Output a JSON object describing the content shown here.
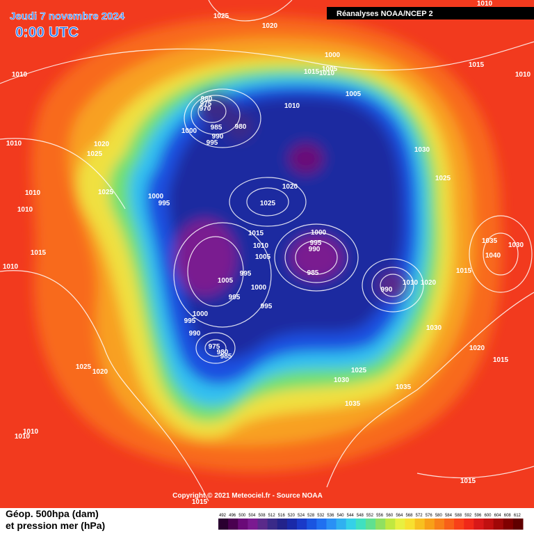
{
  "header": {
    "title": "Jeudi 7 novembre 2024",
    "time": "0:00 UTC",
    "source": "Réanalyses NOAA/NCEP 2"
  },
  "copyright": "Copyright © 2021 Meteociel.fr - Source NOAA",
  "legend": {
    "lines": [
      "Géop. 500hpa (dam)",
      "et pression mer (hPa)"
    ],
    "scale_labels": [
      "492",
      "496",
      "500",
      "504",
      "508",
      "512",
      "516",
      "520",
      "524",
      "528",
      "532",
      "536",
      "540",
      "544",
      "548",
      "552",
      "556",
      "560",
      "564",
      "568",
      "572",
      "576",
      "580",
      "584",
      "588",
      "592",
      "596",
      "600",
      "604",
      "608",
      "612"
    ],
    "scale_colors": [
      "#2a0030",
      "#4a0050",
      "#6a0a78",
      "#7a1a90",
      "#5a2a8a",
      "#3a2a88",
      "#23238a",
      "#1a2aa8",
      "#1a3ac8",
      "#1a55e0",
      "#2070f0",
      "#2a90f5",
      "#30b0f0",
      "#35d0e8",
      "#40e0c0",
      "#60e090",
      "#90e060",
      "#c0e840",
      "#e8f040",
      "#f8e030",
      "#f8c020",
      "#f8a018",
      "#f88018",
      "#f86018",
      "#f84018",
      "#f02818",
      "#d81818",
      "#c01010",
      "#a00808",
      "#800000",
      "#600000"
    ]
  },
  "isobar_labels": [
    "1025",
    "1020",
    "1010",
    "1015",
    "1010",
    "1010",
    "1000",
    "1005",
    "1015",
    "1010",
    "1005",
    "980",
    "975",
    "970",
    "1010",
    "985",
    "980",
    "990",
    "1000",
    "995",
    "1010",
    "1020",
    "1025",
    "1030",
    "1025",
    "1020",
    "1010",
    "1025",
    "1000",
    "995",
    "1025",
    "1010",
    "1015",
    "1000",
    "1010",
    "995",
    "990",
    "1035",
    "1030",
    "1015",
    "1005",
    "1040",
    "995",
    "985",
    "1015",
    "1010",
    "1005",
    "1000",
    "990",
    "1010",
    "1020",
    "995",
    "995",
    "1000",
    "995",
    "990",
    "1030",
    "975",
    "980",
    "985",
    "1020",
    "1015",
    "1025",
    "1020",
    "1025",
    "1030",
    "1035",
    "1035",
    "1010",
    "1010",
    "1015",
    "1015"
  ]
}
